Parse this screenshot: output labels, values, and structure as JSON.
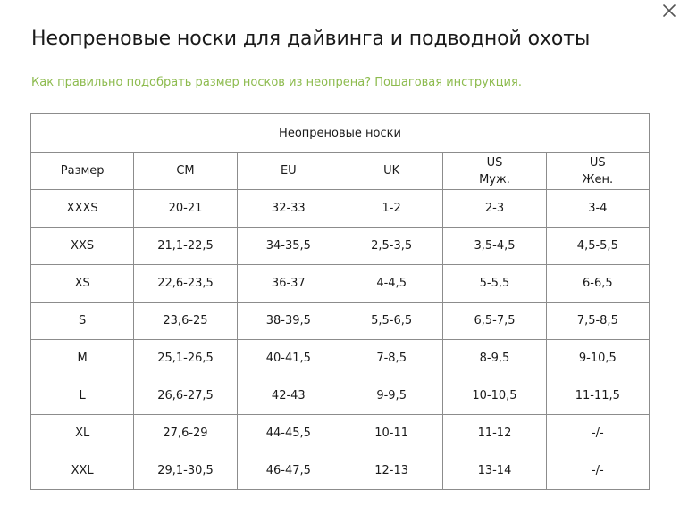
{
  "modal": {
    "title": "Неопреновые носки для дайвинга и подводной охоты",
    "guide_link": "Как правильно подобрать размер носков из неопрена? Пошаговая инструкция.",
    "accent_color": "#8dbb4e",
    "close_icon": "close-icon"
  },
  "table": {
    "caption": "Неопреновые носки",
    "headers": [
      [
        "Размер"
      ],
      [
        "CM"
      ],
      [
        "EU"
      ],
      [
        "UK"
      ],
      [
        "US",
        "Муж."
      ],
      [
        "US",
        "Жен."
      ]
    ],
    "rows": [
      [
        "XXXS",
        "20-21",
        "32-33",
        "1-2",
        "2-3",
        "3-4"
      ],
      [
        "XXS",
        "21,1-22,5",
        "34-35,5",
        "2,5-3,5",
        "3,5-4,5",
        "4,5-5,5"
      ],
      [
        "XS",
        "22,6-23,5",
        "36-37",
        "4-4,5",
        "5-5,5",
        "6-6,5"
      ],
      [
        "S",
        "23,6-25",
        "38-39,5",
        "5,5-6,5",
        "6,5-7,5",
        "7,5-8,5"
      ],
      [
        "M",
        "25,1-26,5",
        "40-41,5",
        "7-8,5",
        "8-9,5",
        "9-10,5"
      ],
      [
        "L",
        "26,6-27,5",
        "42-43",
        "9-9,5",
        "10-10,5",
        "11-11,5"
      ],
      [
        "XL",
        "27,6-29",
        "44-45,5",
        "10-11",
        "11-12",
        "-/-"
      ],
      [
        "XXL",
        "29,1-30,5",
        "46-47,5",
        "12-13",
        "13-14",
        "-/-"
      ]
    ]
  }
}
